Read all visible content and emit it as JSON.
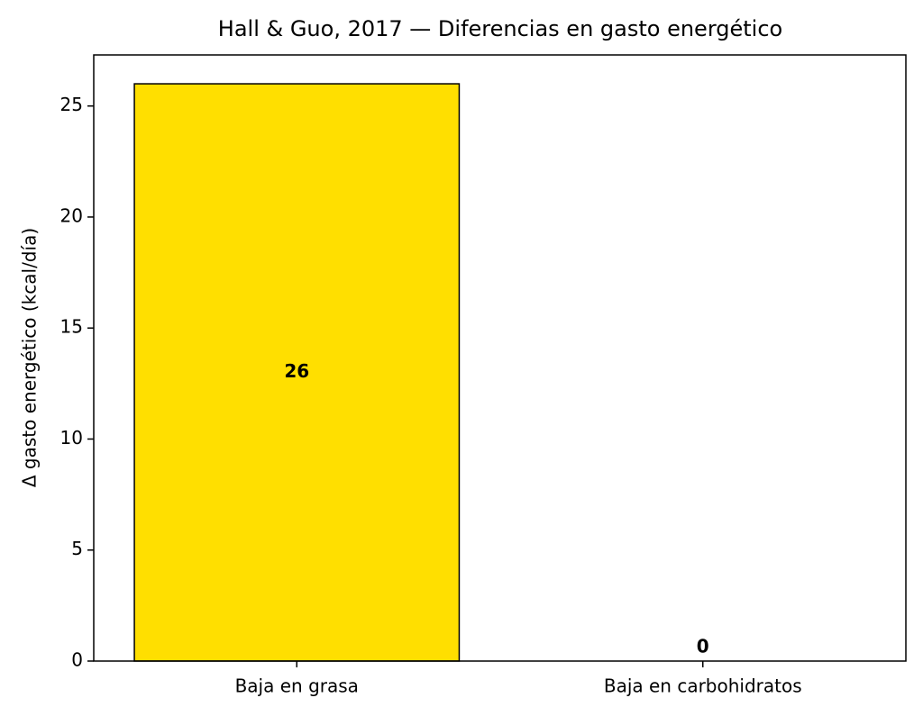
{
  "chart_data": {
    "type": "bar",
    "title": "Hall & Guo, 2017 — Diferencias en gasto energético",
    "y_label": "Δ gasto energético (kcal/día)",
    "categories": [
      "Baja en grasa",
      "Baja en carbohidratos"
    ],
    "values": [
      26,
      0
    ],
    "color": "#ffdf00",
    "ylim": [
      0,
      27.3
    ],
    "yticks": [
      0,
      5,
      10,
      15,
      20,
      25
    ]
  }
}
